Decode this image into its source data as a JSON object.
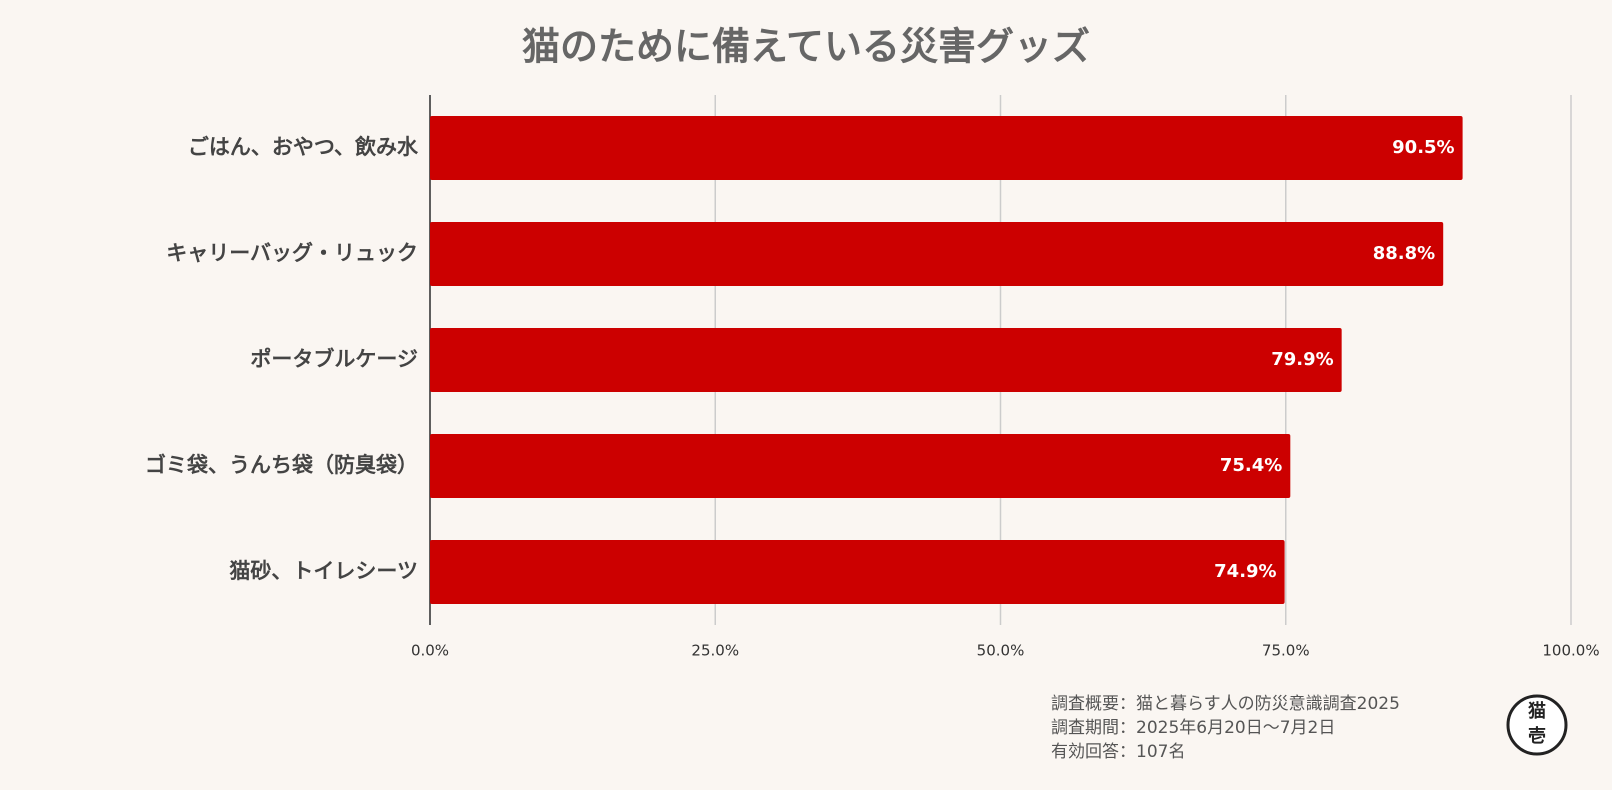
{
  "chart_data": {
    "type": "hbar",
    "title": "猫のために備えている災害グッズ",
    "categories": [
      "ごはん、おやつ、飲み水",
      "キャリーバッグ・リュック",
      "ポータブルケージ",
      "ゴミ袋、うんち袋（防臭袋）",
      "猫砂、トイレシーツ"
    ],
    "values": [
      90.5,
      88.8,
      79.9,
      75.4,
      74.9
    ],
    "value_labels": [
      "90.5%",
      "88.8%",
      "79.9%",
      "75.4%",
      "74.9%"
    ],
    "color": "#cc0000",
    "xlim": [
      0,
      100
    ],
    "xticks": [
      {
        "value": 0,
        "label": "0.0%"
      },
      {
        "value": 25,
        "label": "25.0%"
      },
      {
        "value": 50,
        "label": "50.0%"
      },
      {
        "value": 75,
        "label": "75.0%"
      },
      {
        "value": 100,
        "label": "100.0%"
      }
    ],
    "grid": true,
    "notes": [
      "調査概要：猫と暮らす人の防災意識調査2025",
      "調査期間：2025年6月20日〜7月2日",
      "有効回答：107名"
    ],
    "logo": {
      "top": "猫",
      "bottom": "壱"
    }
  }
}
